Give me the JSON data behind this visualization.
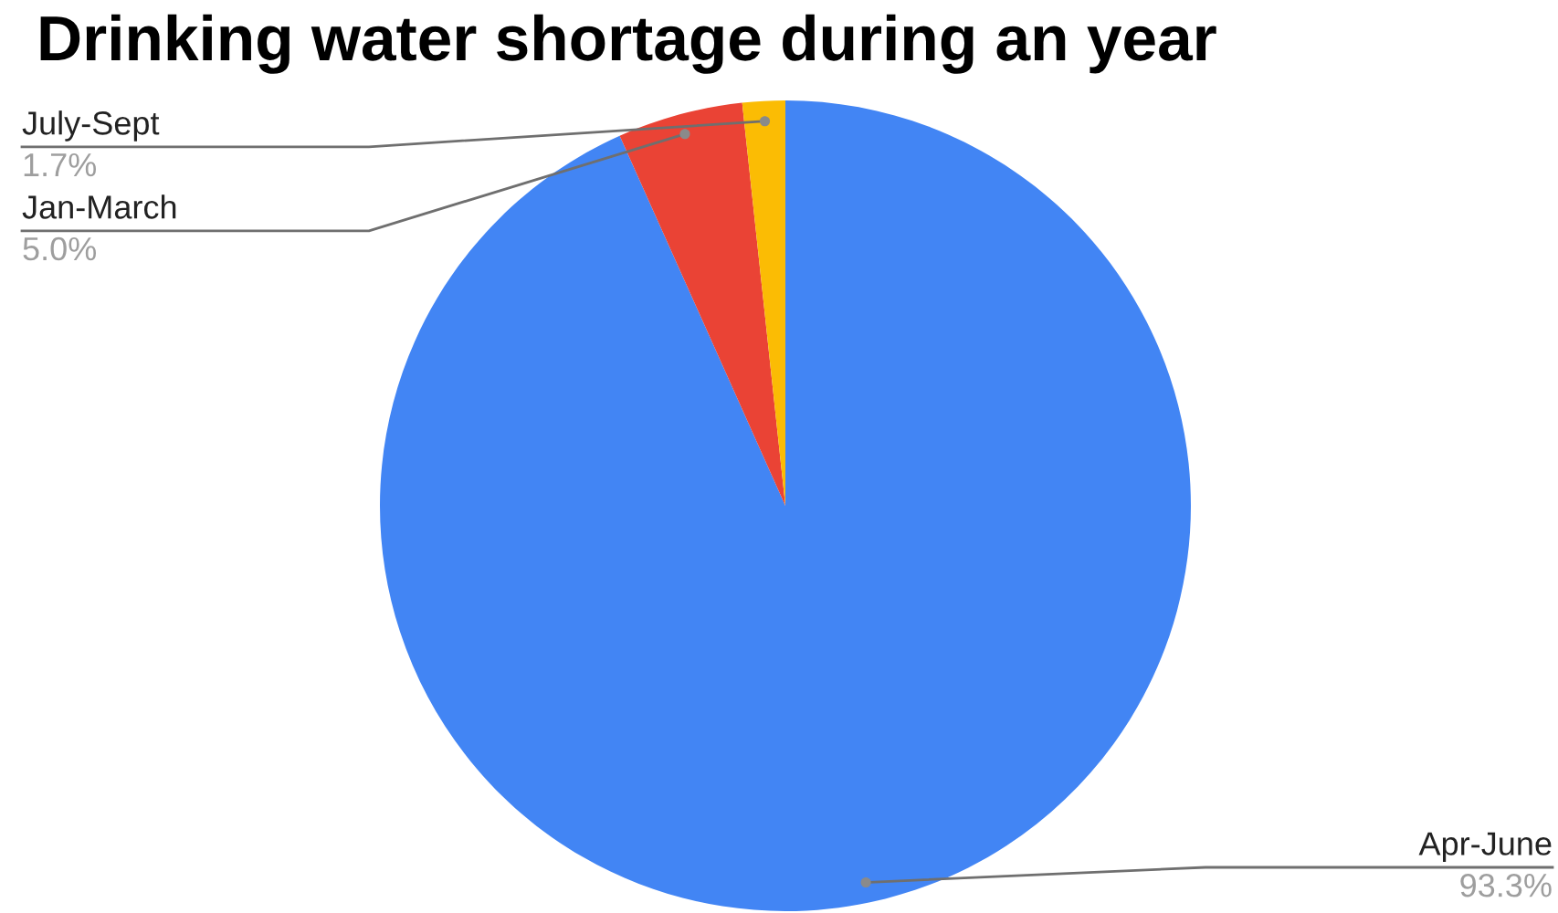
{
  "chart_data": {
    "type": "pie",
    "title": "Drinking water shortage during an year",
    "categories": [
      "Apr-June",
      "Jan-March",
      "July-Sept"
    ],
    "values": [
      93.3,
      5.0,
      1.7
    ],
    "colors": [
      "#4285f4",
      "#ea4335",
      "#fbbc04"
    ],
    "value_labels": [
      "93.3%",
      "5.0%",
      "1.7%"
    ]
  }
}
